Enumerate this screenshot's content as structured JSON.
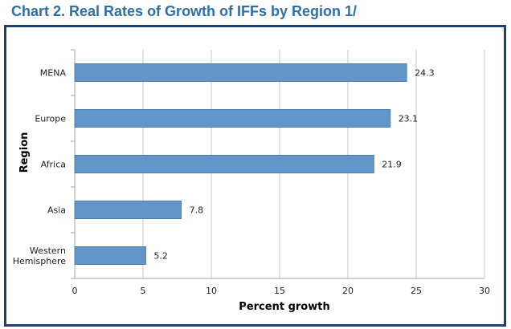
{
  "title": "Chart 2. Real Rates of Growth of IFFs by Region 1/",
  "chart_data": {
    "type": "bar",
    "orientation": "horizontal",
    "categories": [
      "MENA",
      "Europe",
      "Africa",
      "Asia",
      [
        "Western",
        "Hemisphere"
      ]
    ],
    "values": [
      24.3,
      23.1,
      21.9,
      7.8,
      5.2
    ],
    "value_labels": [
      "24.3",
      "23.1",
      "21.9",
      "7.8",
      "5.2"
    ],
    "xlabel": "Percent growth",
    "ylabel": "Region",
    "xlim": [
      0,
      30
    ],
    "xticks": [
      0,
      5,
      10,
      15,
      20,
      25,
      30
    ],
    "grid": "vertical",
    "colors": {
      "bar": "#6395c8",
      "bar_stroke": "#4a7db4",
      "grid": "#c8c8c8",
      "axis": "#a6a6a6"
    }
  }
}
